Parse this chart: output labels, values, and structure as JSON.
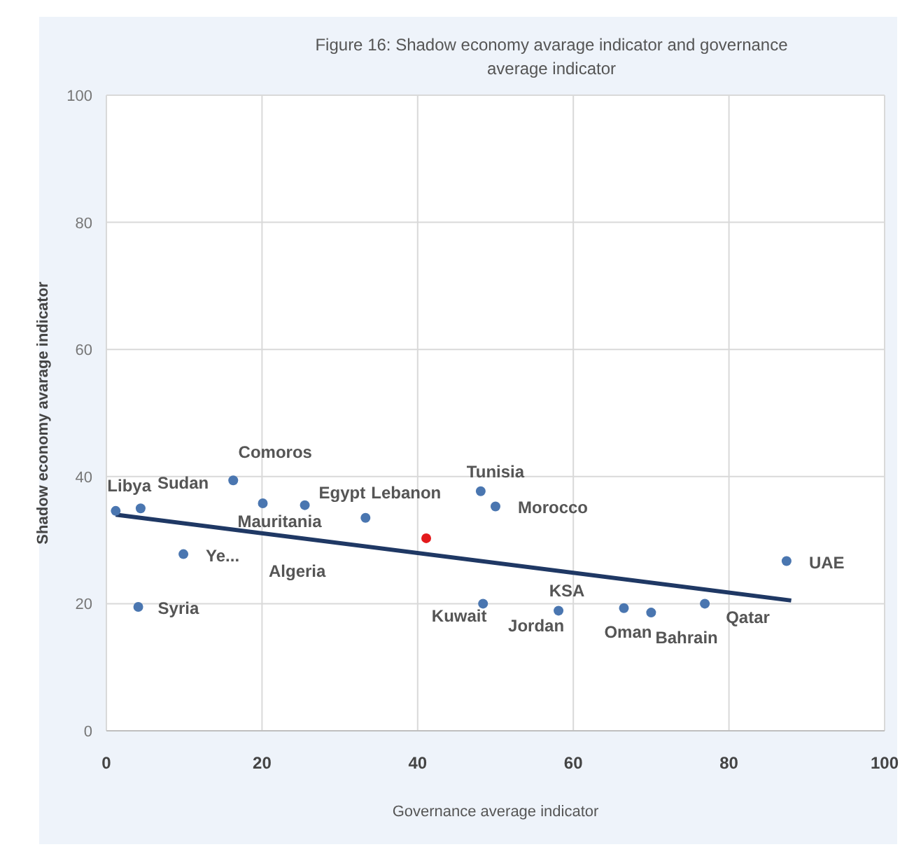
{
  "chart_data": {
    "type": "scatter",
    "title": "Figure 16: Shadow economy avarage indicator and governance average indicator",
    "xlabel": "Governance average indicator",
    "ylabel": "Shadow economy avarage indicator",
    "xlim": [
      0,
      100
    ],
    "ylim": [
      0,
      100
    ],
    "xticks": [
      0,
      20,
      40,
      60,
      80,
      100
    ],
    "yticks": [
      0,
      20,
      40,
      60,
      80,
      100
    ],
    "grid": true,
    "marker": "circle",
    "series": [
      {
        "color": "#4a76b0",
        "x": [
          1.2,
          4.4,
          16.3,
          20.1,
          25.5,
          33.3,
          9.9,
          4.1,
          48.1,
          50.0,
          48.4,
          58.1,
          66.5,
          70.0,
          76.9,
          87.4
        ],
        "values": [
          34.6,
          35.0,
          39.4,
          35.8,
          35.5,
          33.5,
          27.8,
          19.5,
          37.7,
          35.3,
          20.0,
          18.9,
          19.3,
          18.6,
          20.0,
          26.7
        ]
      },
      {
        "color": "#e31a1c",
        "x": [
          41.1
        ],
        "values": [
          30.3
        ]
      },
      {
        "type": "line",
        "marker": "none",
        "color": "#1f3864",
        "x": [
          1.2,
          88
        ],
        "values": [
          34.0,
          20.5
        ]
      }
    ],
    "annotations": [
      {
        "text": "Libya",
        "x": 1.2,
        "y": 34.6
      },
      {
        "text": "Sudan",
        "x": 4.4,
        "y": 35.0
      },
      {
        "text": "Comoros",
        "x": 16.3,
        "y": 39.4
      },
      {
        "text": "Mauritania",
        "x": 20.1,
        "y": 35.8
      },
      {
        "text": "Egypt",
        "x": 25.5,
        "y": 35.5
      },
      {
        "text": "Lebanon",
        "x": 33.3,
        "y": 33.5
      },
      {
        "text": "Ye...",
        "x": 9.9,
        "y": 27.8
      },
      "Algeria",
      {
        "text": "Syria",
        "x": 4.1,
        "y": 19.5
      },
      {
        "text": "Tunisia",
        "x": 48.1,
        "y": 37.7
      },
      {
        "text": "Morocco",
        "x": 50.0,
        "y": 35.3
      },
      {
        "text": "Kuwait",
        "x": 48.4,
        "y": 20.0
      },
      {
        "text": "KSA",
        "x": 58.1,
        "y": 18.9
      },
      {
        "text": "Jordan",
        "x": 58.1,
        "y": 18.9
      },
      {
        "text": "Oman",
        "x": 66.5,
        "y": 19.3
      },
      {
        "text": "Bahrain",
        "x": 70.0,
        "y": 18.6
      },
      {
        "text": "Qatar",
        "x": 76.9,
        "y": 20.0
      },
      {
        "text": "UAE",
        "x": 87.4,
        "y": 26.7
      }
    ]
  }
}
